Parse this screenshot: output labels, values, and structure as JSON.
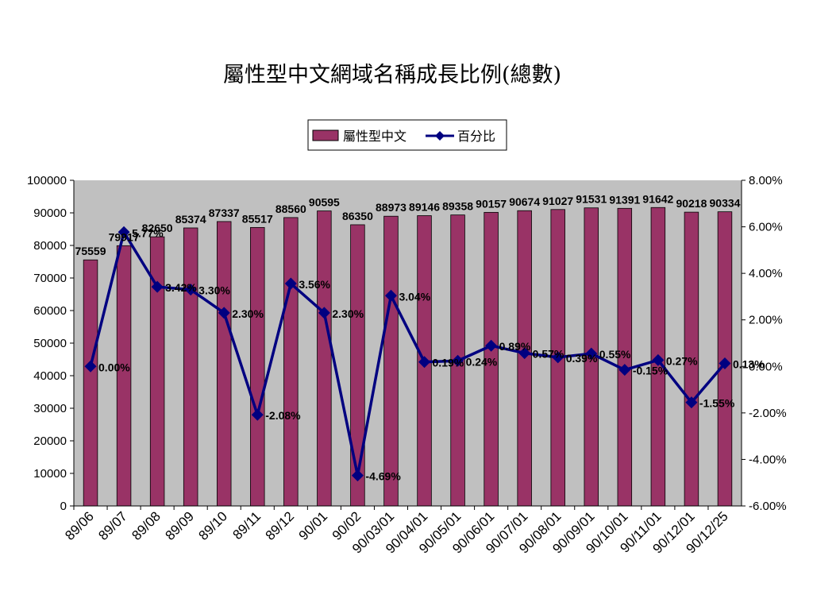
{
  "chart_data": {
    "type": "bar",
    "title": "屬性型中文網域名稱成長比例(總數)",
    "categories": [
      "89/06",
      "89/07",
      "89/08",
      "89/09",
      "89/10",
      "89/11",
      "89/12",
      "90/01",
      "90/02",
      "90/03/01",
      "90/04/01",
      "90/05/01",
      "90/06/01",
      "90/07/01",
      "90/08/01",
      "90/09/01",
      "90/10/01",
      "90/11/01",
      "90/12/01",
      "90/12/25"
    ],
    "series": [
      {
        "name": "屬性型中文",
        "type": "bar",
        "axis": "left",
        "values": [
          75559,
          79917,
          82650,
          85374,
          87337,
          85517,
          88560,
          90595,
          86350,
          88973,
          89146,
          89358,
          90157,
          90674,
          91027,
          91531,
          91391,
          91642,
          90218,
          90334
        ],
        "labels": [
          "75559",
          "79917",
          "82650",
          "85374",
          "87337",
          "85517",
          "88560",
          "90595",
          "86350",
          "88973",
          "89146",
          "89358",
          "90157",
          "90674",
          "91027",
          "91531",
          "91391",
          "91642",
          "90218",
          "90334"
        ],
        "color": "#993366"
      },
      {
        "name": "百分比",
        "type": "line",
        "axis": "right",
        "values": [
          0.0,
          5.77,
          3.42,
          3.3,
          2.3,
          -2.08,
          3.56,
          2.3,
          -4.69,
          3.04,
          0.19,
          0.24,
          0.89,
          0.57,
          0.39,
          0.55,
          -0.15,
          0.27,
          -1.55,
          0.13
        ],
        "labels": [
          "0.00%",
          "5.77%",
          "3.42%",
          "3.30%",
          "2.30%",
          "-2.08%",
          "3.56%",
          "2.30%",
          "-4.69%",
          "3.04%",
          "0.19%",
          "0.24%",
          "0.89%",
          "0.57%",
          "0.39%",
          "0.55%",
          "-0.15%",
          "0.27%",
          "-1.55%",
          "0.13%"
        ],
        "color": "#000080"
      }
    ],
    "y_left": {
      "min": 0,
      "max": 100000,
      "step": 10000,
      "ticks": [
        "0",
        "10000",
        "20000",
        "30000",
        "40000",
        "50000",
        "60000",
        "70000",
        "80000",
        "90000",
        "100000"
      ]
    },
    "y_right": {
      "min": -6,
      "max": 8,
      "step": 2,
      "ticks": [
        "-6.00%",
        "-4.00%",
        "-2.00%",
        "0.00%",
        "2.00%",
        "4.00%",
        "6.00%",
        "8.00%"
      ]
    },
    "grid": false,
    "legend_position": "top-center",
    "plot_background": "#c0c0c0"
  }
}
